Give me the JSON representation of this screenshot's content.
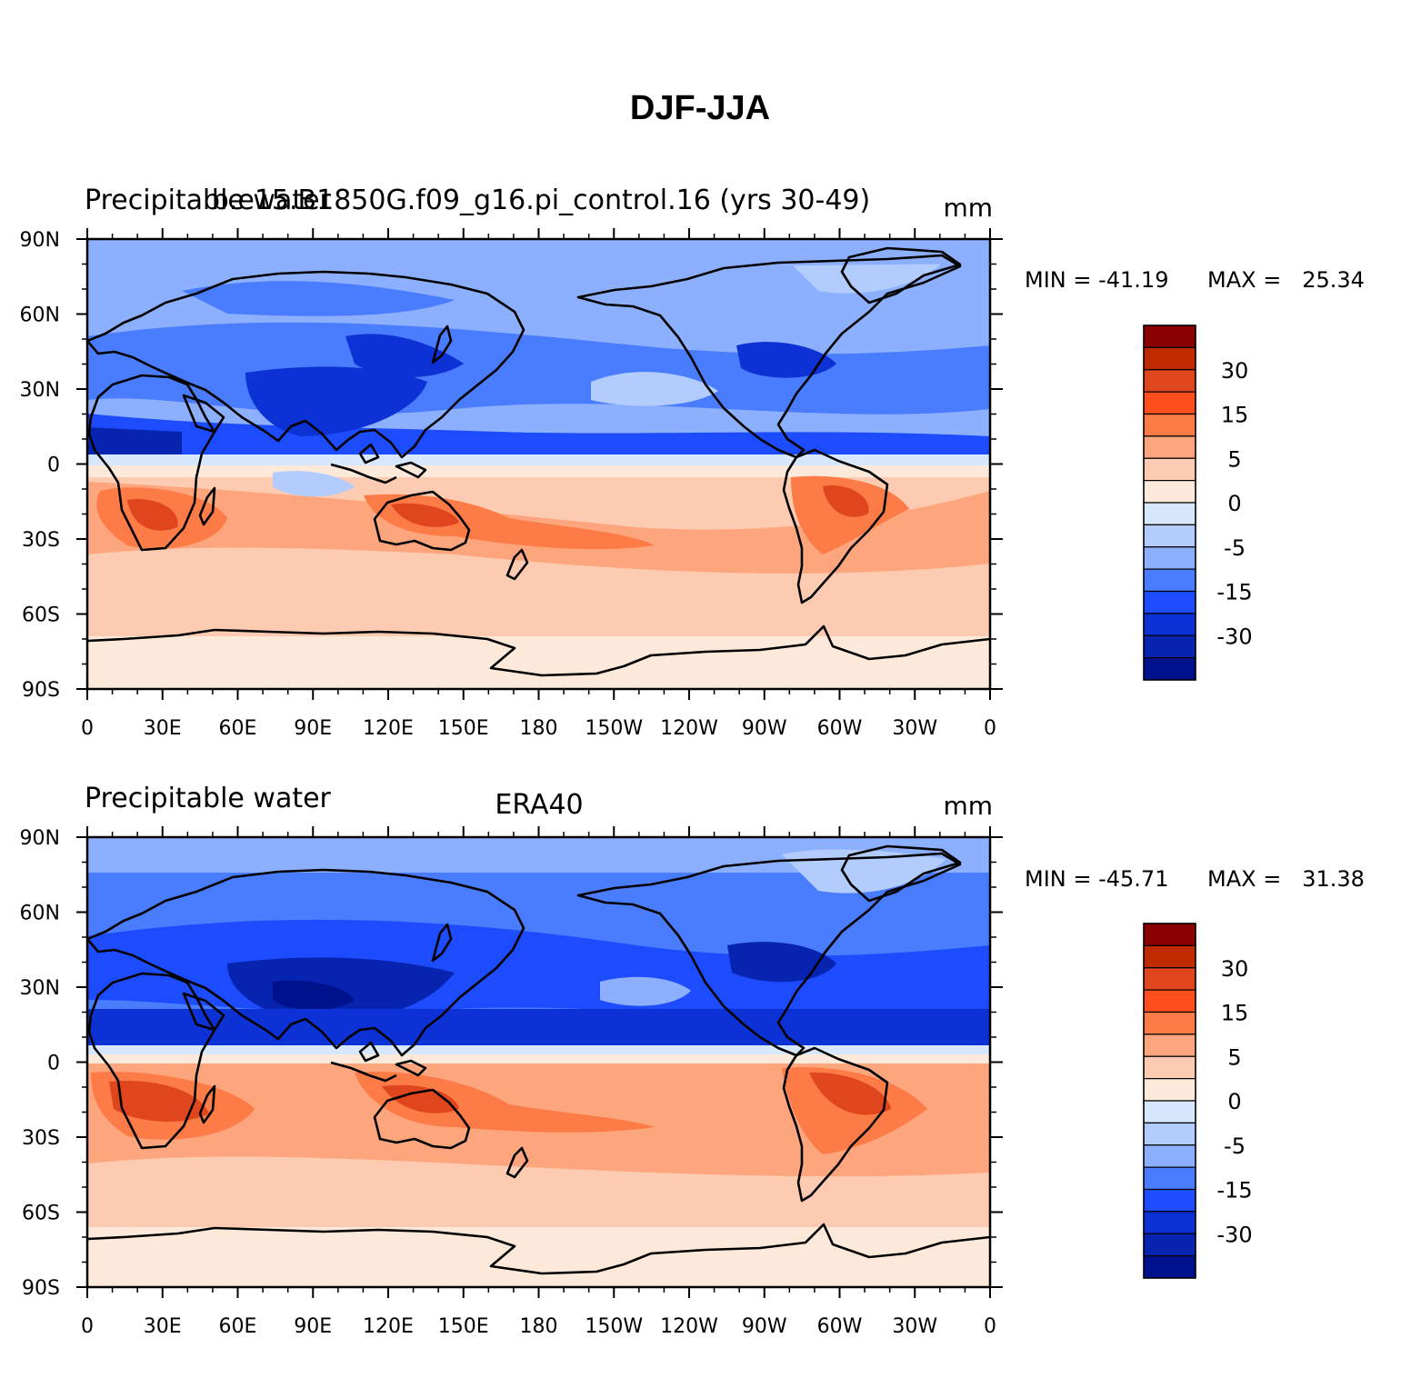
{
  "figure": {
    "title": "DJF-JJA"
  },
  "lon_labels": [
    "0",
    "30E",
    "60E",
    "90E",
    "120E",
    "150E",
    "180",
    "150W",
    "120W",
    "90W",
    "60W",
    "30W",
    "0"
  ],
  "lat_labels": [
    "90N",
    "60N",
    "30N",
    "0",
    "30S",
    "60S",
    "90S"
  ],
  "colorbar": {
    "labels": [
      "30",
      "15",
      "5",
      "0",
      "-5",
      "-15",
      "-30"
    ],
    "colors": [
      "#8b0000",
      "#c02a00",
      "#e0461e",
      "#fd4f1e",
      "#fd7b46",
      "#fda67d",
      "#fdcbb2",
      "#fde9d9",
      "#d7e7fe",
      "#b2ccfe",
      "#8cb0fe",
      "#497dfe",
      "#1d4cfe",
      "#0c32d6",
      "#0624b0",
      "#00118c"
    ]
  },
  "panels": [
    {
      "id": "model",
      "left_title": "Precipitable water",
      "center_title": "b.e15.B1850G.f09_g16.pi_control.16 (yrs 30-49)",
      "units": "mm",
      "min_label": "MIN = -41.19",
      "max_label": "MAX =   25.34"
    },
    {
      "id": "obs",
      "left_title": "Precipitable water",
      "center_title": "ERA40",
      "units": "mm",
      "min_label": "MIN = -45.71",
      "max_label": "MAX =   31.38"
    }
  ]
}
